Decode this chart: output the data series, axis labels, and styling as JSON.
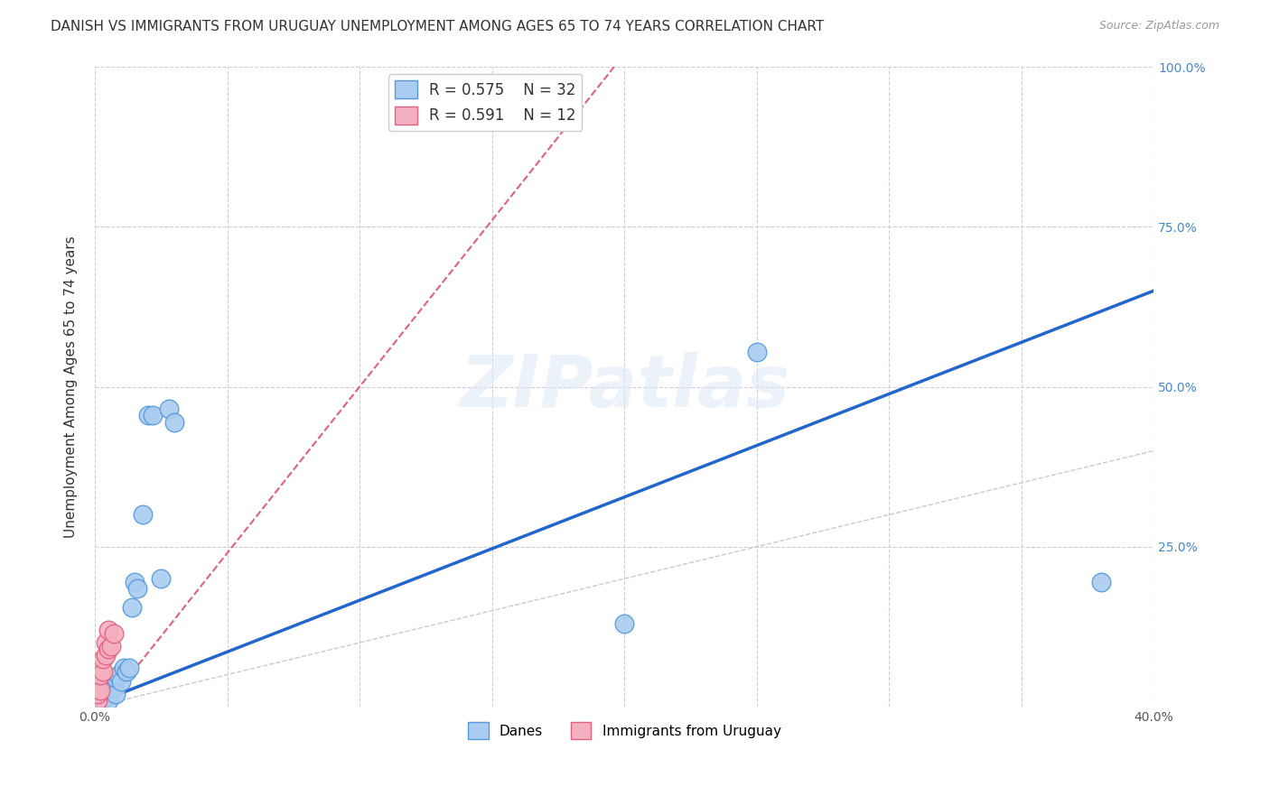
{
  "title": "DANISH VS IMMIGRANTS FROM URUGUAY UNEMPLOYMENT AMONG AGES 65 TO 74 YEARS CORRELATION CHART",
  "source": "Source: ZipAtlas.com",
  "ylabel": "Unemployment Among Ages 65 to 74 years",
  "xlim": [
    0.0,
    0.4
  ],
  "ylim": [
    0.0,
    1.0
  ],
  "legend_r1": "R = 0.575",
  "legend_n1": "N = 32",
  "legend_r2": "R = 0.591",
  "legend_n2": "N = 12",
  "danes_color": "#aaccf0",
  "danes_edge_color": "#5599dd",
  "uruguay_color": "#f5b0c0",
  "uruguay_edge_color": "#e06080",
  "line_blue_color": "#2266cc",
  "line_pink_color": "#e06080",
  "diag_color": "#c8c8d8",
  "watermark": "ZIPatlas",
  "background_color": "#ffffff",
  "grid_color": "#ccccdd",
  "title_fontsize": 11,
  "label_fontsize": 11,
  "tick_fontsize": 10,
  "blue_line_x0": 0.0,
  "blue_line_y0": 0.005,
  "blue_line_x1": 0.4,
  "blue_line_y1": 0.65,
  "pink_line_x0": 0.0,
  "pink_line_y0": -0.02,
  "pink_line_x1": 0.1,
  "pink_line_y1": 0.5,
  "danes_x": [
    0.001,
    0.001,
    0.002,
    0.002,
    0.003,
    0.003,
    0.003,
    0.004,
    0.004,
    0.005,
    0.005,
    0.006,
    0.007,
    0.008,
    0.008,
    0.009,
    0.01,
    0.011,
    0.012,
    0.013,
    0.014,
    0.015,
    0.016,
    0.018,
    0.02,
    0.022,
    0.025,
    0.028,
    0.03,
    0.2,
    0.25,
    0.38
  ],
  "danes_y": [
    0.005,
    0.015,
    0.01,
    0.02,
    0.01,
    0.02,
    0.03,
    0.015,
    0.025,
    0.01,
    0.03,
    0.04,
    0.03,
    0.02,
    0.045,
    0.05,
    0.04,
    0.06,
    0.055,
    0.06,
    0.155,
    0.195,
    0.185,
    0.3,
    0.455,
    0.455,
    0.2,
    0.465,
    0.445,
    0.13,
    0.555,
    0.195
  ],
  "uruguay_x": [
    0.001,
    0.001,
    0.002,
    0.002,
    0.003,
    0.003,
    0.004,
    0.004,
    0.005,
    0.005,
    0.006,
    0.007
  ],
  "uruguay_y": [
    0.01,
    0.02,
    0.025,
    0.05,
    0.055,
    0.075,
    0.08,
    0.1,
    0.09,
    0.12,
    0.095,
    0.115
  ]
}
